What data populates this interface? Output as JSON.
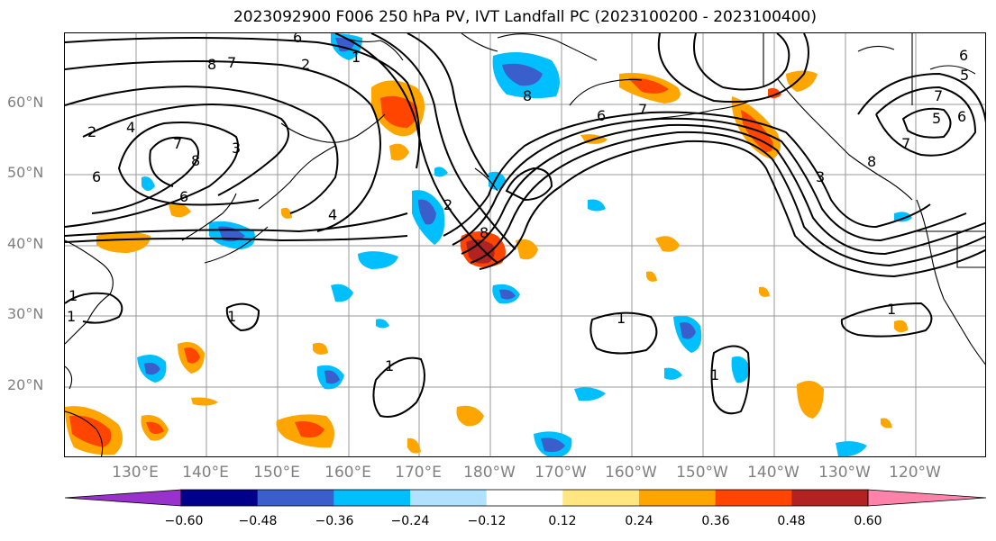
{
  "title": "2023092900 F006 250 hPa PV, IVT Landfall PC (2023100200 - 2023100400)",
  "lat_labels": [
    "60°N",
    "50°N",
    "40°N",
    "30°N",
    "20°N"
  ],
  "lon_labels": [
    "130°E",
    "140°E",
    "150°E",
    "160°E",
    "170°E",
    "180°W",
    "170°W",
    "160°W",
    "150°W",
    "140°W",
    "130°W",
    "120°W"
  ],
  "colorbar": {
    "tick_labels": [
      "−0.60",
      "−0.48",
      "−0.36",
      "−0.24",
      "−0.12",
      "0.12",
      "0.24",
      "0.36",
      "0.48",
      "0.60"
    ],
    "colors": [
      "#9932cc",
      "#00008b",
      "#3a5fcd",
      "#00bfff",
      "#b0e2ff",
      "#ffffff",
      "#ffe680",
      "#ffa500",
      "#ff4500",
      "#b22222",
      "#ff82ab"
    ]
  },
  "contour_labels": [
    "8",
    "7",
    "6",
    "2",
    "1",
    "6",
    "2",
    "1",
    "4",
    "7",
    "8",
    "3",
    "6",
    "4",
    "2",
    "1",
    "1",
    "1",
    "1",
    "1",
    "1",
    "8",
    "6",
    "7",
    "8",
    "6",
    "5",
    "7",
    "6",
    "5",
    "7",
    "8",
    "3"
  ],
  "map_extent": {
    "lon_min": 120,
    "lon_max": 250,
    "lat_min": 10,
    "lat_max": 70
  }
}
